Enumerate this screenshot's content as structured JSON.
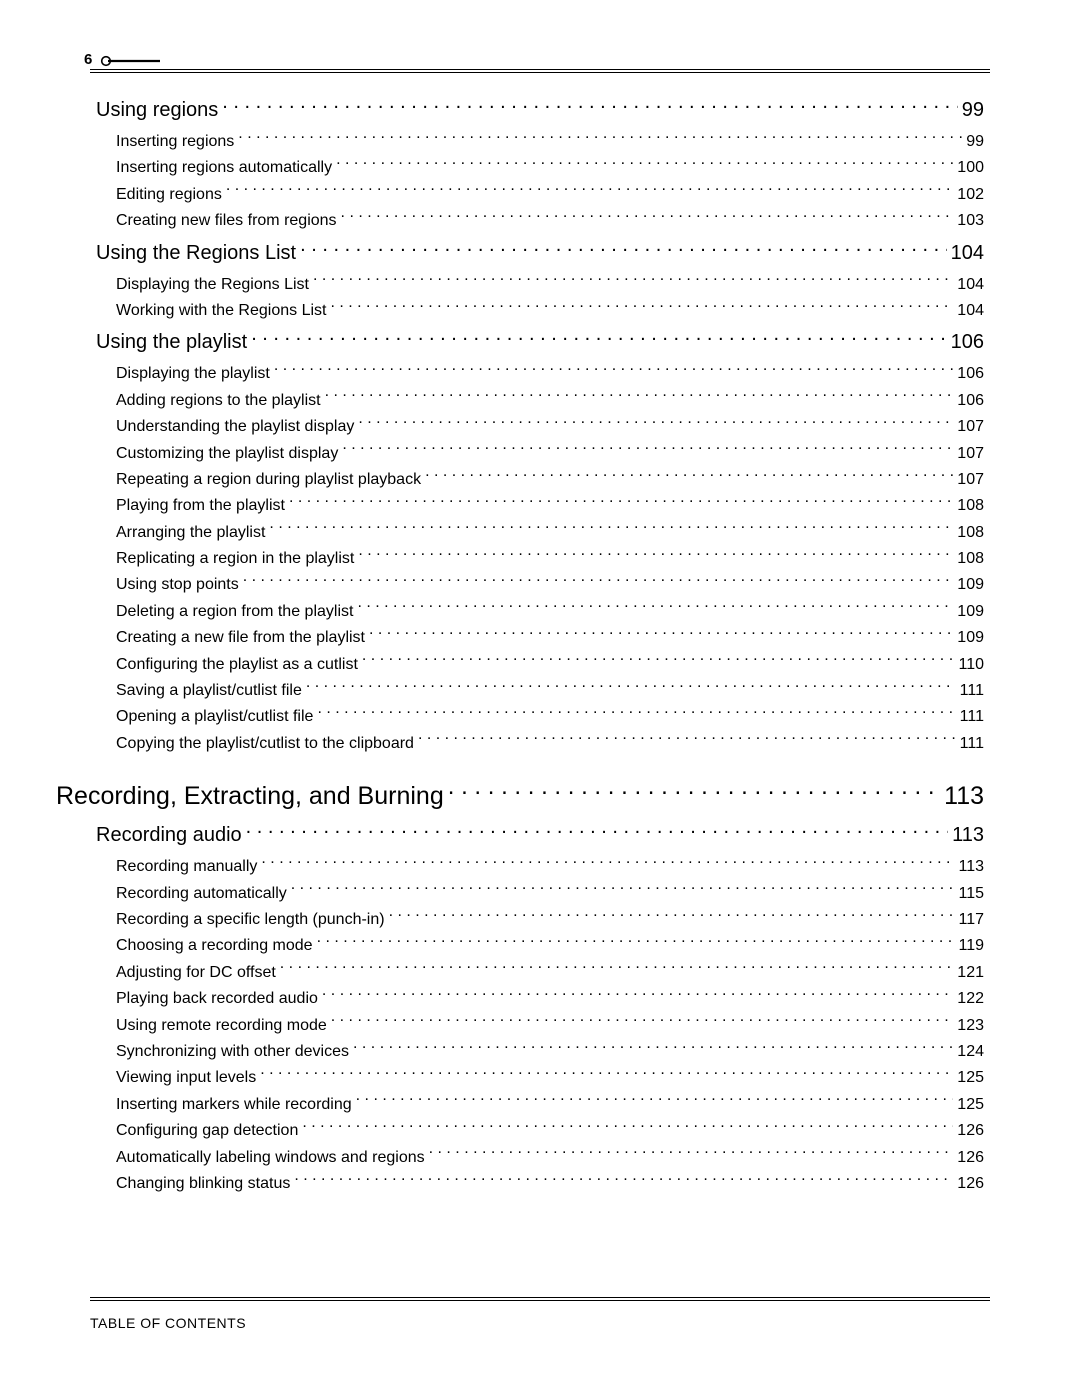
{
  "page_number": "6",
  "footer": "TABLE OF CONTENTS",
  "colors": {
    "text": "#000000",
    "background": "#ffffff",
    "rule": "#000000"
  },
  "typography": {
    "family": "Arial, Helvetica, sans-serif",
    "level1_size_pt": 19,
    "level2_size_pt": 15,
    "level3_size_pt": 12,
    "footer_size_pt": 11
  },
  "toc": [
    {
      "level": 2,
      "label": "Using regions",
      "page": "99"
    },
    {
      "level": 3,
      "label": "Inserting regions",
      "page": "99"
    },
    {
      "level": 3,
      "label": "Inserting regions automatically",
      "page": "100"
    },
    {
      "level": 3,
      "label": "Editing regions",
      "page": "102"
    },
    {
      "level": 3,
      "label": "Creating new files from regions",
      "page": "103"
    },
    {
      "level": 2,
      "label": "Using the Regions List",
      "page": "104"
    },
    {
      "level": 3,
      "label": "Displaying the Regions List",
      "page": "104"
    },
    {
      "level": 3,
      "label": "Working with the Regions List",
      "page": "104"
    },
    {
      "level": 2,
      "label": "Using the playlist",
      "page": "106"
    },
    {
      "level": 3,
      "label": "Displaying the playlist",
      "page": "106"
    },
    {
      "level": 3,
      "label": "Adding regions to the playlist",
      "page": "106"
    },
    {
      "level": 3,
      "label": "Understanding the playlist display",
      "page": "107"
    },
    {
      "level": 3,
      "label": "Customizing the playlist display",
      "page": "107"
    },
    {
      "level": 3,
      "label": "Repeating a region during playlist playback",
      "page": "107"
    },
    {
      "level": 3,
      "label": "Playing from the playlist",
      "page": "108"
    },
    {
      "level": 3,
      "label": "Arranging the playlist",
      "page": "108"
    },
    {
      "level": 3,
      "label": "Replicating a region in the playlist",
      "page": "108"
    },
    {
      "level": 3,
      "label": "Using stop points",
      "page": "109"
    },
    {
      "level": 3,
      "label": "Deleting a region from the playlist",
      "page": "109"
    },
    {
      "level": 3,
      "label": "Creating a new file from the playlist",
      "page": "109"
    },
    {
      "level": 3,
      "label": "Configuring the playlist as a cutlist",
      "page": "110"
    },
    {
      "level": 3,
      "label": "Saving a playlist/cutlist file",
      "page": "111"
    },
    {
      "level": 3,
      "label": "Opening a playlist/cutlist file",
      "page": "111"
    },
    {
      "level": 3,
      "label": "Copying the playlist/cutlist to the clipboard",
      "page": "111"
    },
    {
      "level": 1,
      "label": "Recording, Extracting, and Burning",
      "page": "113"
    },
    {
      "level": 2,
      "label": "Recording audio",
      "page": "113"
    },
    {
      "level": 3,
      "label": "Recording manually",
      "page": "113"
    },
    {
      "level": 3,
      "label": "Recording automatically",
      "page": "115"
    },
    {
      "level": 3,
      "label": "Recording a specific length (punch-in)",
      "page": "117"
    },
    {
      "level": 3,
      "label": "Choosing a recording mode",
      "page": "119"
    },
    {
      "level": 3,
      "label": "Adjusting for DC offset",
      "page": "121"
    },
    {
      "level": 3,
      "label": "Playing back recorded audio",
      "page": "122"
    },
    {
      "level": 3,
      "label": "Using remote recording mode",
      "page": "123"
    },
    {
      "level": 3,
      "label": "Synchronizing with other devices",
      "page": "124"
    },
    {
      "level": 3,
      "label": "Viewing input levels",
      "page": "125"
    },
    {
      "level": 3,
      "label": "Inserting markers while recording",
      "page": "125"
    },
    {
      "level": 3,
      "label": "Configuring gap detection",
      "page": "126"
    },
    {
      "level": 3,
      "label": "Automatically labeling windows and regions",
      "page": "126"
    },
    {
      "level": 3,
      "label": "Changing blinking status",
      "page": "126"
    }
  ]
}
